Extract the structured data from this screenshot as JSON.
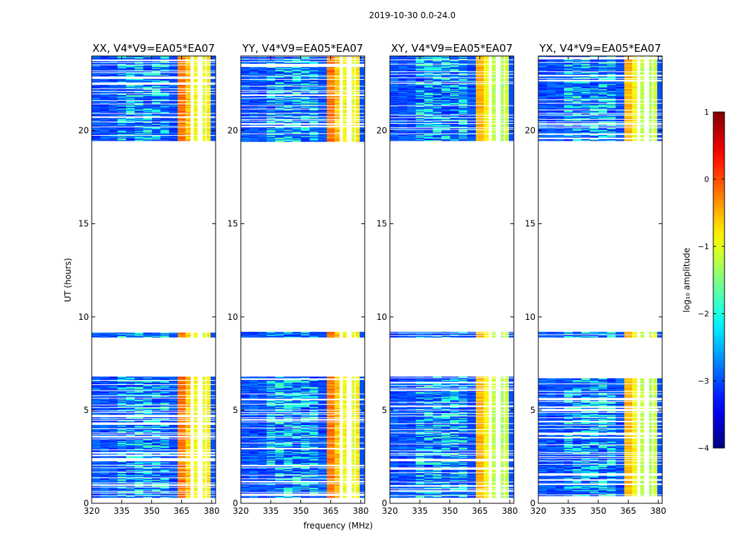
{
  "chart_data": {
    "type": "heatmap",
    "title": "2019-10-30 0.0-24.0",
    "xlabel": "frequency (MHz)",
    "ylabel": "UT (hours)",
    "xlim": [
      320,
      382
    ],
    "ylim": [
      0,
      24
    ],
    "x_ticks": [
      320,
      335,
      350,
      365,
      380
    ],
    "y_ticks": [
      0,
      5,
      10,
      15,
      20
    ],
    "panels": [
      {
        "name": "XX",
        "title": "XX, V4*V9=EA05*EA07",
        "rfi_level": 1.0
      },
      {
        "name": "YY",
        "title": "YY, V4*V9=EA05*EA07",
        "rfi_level": 1.0
      },
      {
        "name": "XY",
        "title": "XY, V4*V9=EA05*EA07",
        "rfi_level": 0.85
      },
      {
        "name": "YX",
        "title": "YX, V4*V9=EA05*EA07",
        "rfi_level": 0.85
      }
    ],
    "data_blocks_ut": [
      [
        0.3,
        6.8
      ],
      [
        8.9,
        9.2
      ],
      [
        19.4,
        24.0
      ]
    ],
    "blank_ranges_ut": [
      [
        6.8,
        8.9
      ],
      [
        9.2,
        19.4
      ]
    ],
    "rfi_bands_mhz": [
      {
        "from": 363,
        "to": 367,
        "log_amp": -0.2
      },
      {
        "from": 367,
        "to": 369.5,
        "log_amp": -0.6
      },
      {
        "from": 371,
        "to": 373,
        "log_amp": -0.9
      },
      {
        "from": 375.5,
        "to": 377,
        "log_amp": -1.0
      },
      {
        "from": 377.5,
        "to": 379.5,
        "log_amp": -0.8
      }
    ],
    "background_log_amp": -3.0,
    "colorbar": {
      "label": "log₁₀ amplitude",
      "range": [
        -4,
        1
      ],
      "ticks": [
        1,
        0,
        -1,
        -2,
        -3,
        -4
      ],
      "tick_labels": [
        "1",
        "0",
        "−1",
        "−2",
        "−3",
        "−4"
      ],
      "colormap": "jet"
    }
  }
}
